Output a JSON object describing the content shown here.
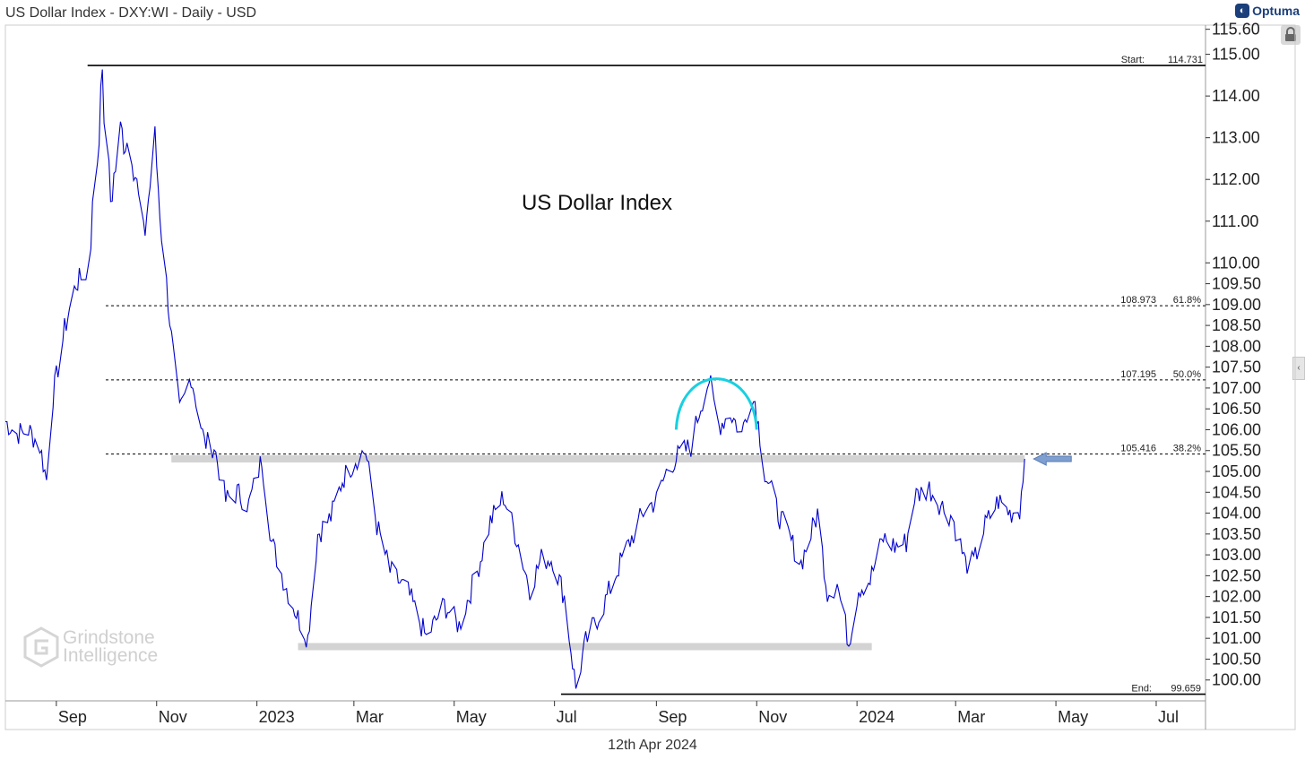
{
  "header": {
    "title": "US Dollar Index - DXY:WI - Daily - USD",
    "brand": "Optuma"
  },
  "footer": {
    "date": "12th Apr 2024"
  },
  "watermark": {
    "line1": "Grindstone",
    "line2": "Intelligence"
  },
  "colors": {
    "price": "#0000cc",
    "arc": "#18d0e0",
    "zone": "#d3d3d3",
    "arrow": "#7f9fd0",
    "axis": "#333333",
    "background": "#ffffff"
  },
  "chart_data": {
    "type": "line",
    "title": "US Dollar Index",
    "xlabel": "",
    "ylabel": "",
    "ylim": [
      99.5,
      115.7
    ],
    "xlim": [
      "2022-08-01",
      "2024-07-31"
    ],
    "grid": false,
    "x_ticks": [
      {
        "date": "2022-09-01",
        "label": "Sep"
      },
      {
        "date": "2022-11-01",
        "label": "Nov"
      },
      {
        "date": "2023-01-01",
        "label": "2023"
      },
      {
        "date": "2023-03-01",
        "label": "Mar"
      },
      {
        "date": "2023-05-01",
        "label": "May"
      },
      {
        "date": "2023-07-01",
        "label": "Jul"
      },
      {
        "date": "2023-09-01",
        "label": "Sep"
      },
      {
        "date": "2023-11-01",
        "label": "Nov"
      },
      {
        "date": "2024-01-01",
        "label": "2024"
      },
      {
        "date": "2024-03-01",
        "label": "Mar"
      },
      {
        "date": "2024-05-01",
        "label": "May"
      },
      {
        "date": "2024-07-01",
        "label": "Jul"
      }
    ],
    "y_ticks": [
      {
        "value": 100.0,
        "label": "100.00"
      },
      {
        "value": 100.5,
        "label": "100.50"
      },
      {
        "value": 101.0,
        "label": "101.00"
      },
      {
        "value": 101.5,
        "label": "101.50"
      },
      {
        "value": 102.0,
        "label": "102.00"
      },
      {
        "value": 102.5,
        "label": "102.50"
      },
      {
        "value": 103.0,
        "label": "103.00"
      },
      {
        "value": 103.5,
        "label": "103.50"
      },
      {
        "value": 104.0,
        "label": "104.00"
      },
      {
        "value": 104.5,
        "label": "104.50"
      },
      {
        "value": 105.0,
        "label": "105.00"
      },
      {
        "value": 105.5,
        "label": "105.50"
      },
      {
        "value": 106.0,
        "label": "106.00"
      },
      {
        "value": 106.5,
        "label": "106.50"
      },
      {
        "value": 107.0,
        "label": "107.00"
      },
      {
        "value": 107.5,
        "label": "107.50"
      },
      {
        "value": 108.0,
        "label": "108.00"
      },
      {
        "value": 108.5,
        "label": "108.50"
      },
      {
        "value": 109.0,
        "label": "109.00"
      },
      {
        "value": 109.5,
        "label": "109.50"
      },
      {
        "value": 110.0,
        "label": "110.00"
      },
      {
        "value": 111.0,
        "label": "111.00"
      },
      {
        "value": 112.0,
        "label": "112.00"
      },
      {
        "value": 113.0,
        "label": "113.00"
      },
      {
        "value": 114.0,
        "label": "114.00"
      },
      {
        "value": 115.0,
        "label": "115.00"
      },
      {
        "value": 115.6,
        "label": "115.60"
      }
    ],
    "series": [
      {
        "points": [
          [
            "2022-08-01",
            106.2
          ],
          [
            "2022-08-08",
            105.9
          ],
          [
            "2022-08-15",
            106.0
          ],
          [
            "2022-08-22",
            105.6
          ],
          [
            "2022-08-26",
            104.8
          ],
          [
            "2022-08-30",
            106.8
          ],
          [
            "2022-09-06",
            108.4
          ],
          [
            "2022-09-13",
            109.5
          ],
          [
            "2022-09-20",
            109.8
          ],
          [
            "2022-09-27",
            113.0
          ],
          [
            "2022-09-28",
            114.7
          ],
          [
            "2022-10-04",
            111.5
          ],
          [
            "2022-10-10",
            113.1
          ],
          [
            "2022-10-17",
            112.8
          ],
          [
            "2022-10-24",
            110.5
          ],
          [
            "2022-10-31",
            112.9
          ],
          [
            "2022-11-04",
            110.8
          ],
          [
            "2022-11-10",
            108.2
          ],
          [
            "2022-11-15",
            106.4
          ],
          [
            "2022-11-22",
            107.3
          ],
          [
            "2022-11-30",
            105.7
          ],
          [
            "2022-12-06",
            105.6
          ],
          [
            "2022-12-13",
            104.3
          ],
          [
            "2022-12-20",
            104.5
          ],
          [
            "2022-12-27",
            104.2
          ],
          [
            "2023-01-04",
            105.3
          ],
          [
            "2023-01-10",
            103.3
          ],
          [
            "2023-01-18",
            102.3
          ],
          [
            "2023-01-26",
            101.5
          ],
          [
            "2023-02-01",
            101.0
          ],
          [
            "2023-02-07",
            103.5
          ],
          [
            "2023-02-15",
            103.9
          ],
          [
            "2023-02-22",
            104.8
          ],
          [
            "2023-03-02",
            105.3
          ],
          [
            "2023-03-08",
            105.5
          ],
          [
            "2023-03-15",
            103.7
          ],
          [
            "2023-03-23",
            102.6
          ],
          [
            "2023-04-03",
            102.1
          ],
          [
            "2023-04-14",
            101.0
          ],
          [
            "2023-04-25",
            101.8
          ],
          [
            "2023-05-04",
            101.3
          ],
          [
            "2023-05-15",
            102.6
          ],
          [
            "2023-05-23",
            103.8
          ],
          [
            "2023-05-31",
            104.4
          ],
          [
            "2023-06-08",
            103.4
          ],
          [
            "2023-06-16",
            102.2
          ],
          [
            "2023-06-23",
            102.9
          ],
          [
            "2023-06-30",
            102.9
          ],
          [
            "2023-07-07",
            102.0
          ],
          [
            "2023-07-14",
            99.8
          ],
          [
            "2023-07-20",
            100.9
          ],
          [
            "2023-07-31",
            101.8
          ],
          [
            "2023-08-10",
            102.8
          ],
          [
            "2023-08-18",
            103.5
          ],
          [
            "2023-08-25",
            104.1
          ],
          [
            "2023-09-01",
            104.3
          ],
          [
            "2023-09-08",
            105.1
          ],
          [
            "2023-09-15",
            105.4
          ],
          [
            "2023-09-22",
            105.6
          ],
          [
            "2023-09-28",
            106.6
          ],
          [
            "2023-10-03",
            107.2
          ],
          [
            "2023-10-09",
            106.1
          ],
          [
            "2023-10-16",
            106.4
          ],
          [
            "2023-10-23",
            105.9
          ],
          [
            "2023-10-27",
            106.6
          ],
          [
            "2023-10-31",
            106.7
          ],
          [
            "2023-11-06",
            105.0
          ],
          [
            "2023-11-14",
            104.0
          ],
          [
            "2023-11-21",
            103.4
          ],
          [
            "2023-11-28",
            102.8
          ],
          [
            "2023-12-04",
            103.5
          ],
          [
            "2023-12-08",
            104.0
          ],
          [
            "2023-12-14",
            102.1
          ],
          [
            "2023-12-20",
            102.3
          ],
          [
            "2023-12-27",
            100.9
          ],
          [
            "2024-01-02",
            102.2
          ],
          [
            "2024-01-09",
            102.4
          ],
          [
            "2024-01-17",
            103.4
          ],
          [
            "2024-01-24",
            103.2
          ],
          [
            "2024-01-31",
            103.3
          ],
          [
            "2024-02-05",
            104.4
          ],
          [
            "2024-02-14",
            104.6
          ],
          [
            "2024-02-21",
            104.2
          ],
          [
            "2024-02-28",
            103.9
          ],
          [
            "2024-03-07",
            102.8
          ],
          [
            "2024-03-12",
            102.8
          ],
          [
            "2024-03-19",
            103.7
          ],
          [
            "2024-03-27",
            104.3
          ],
          [
            "2024-04-03",
            104.0
          ],
          [
            "2024-04-09",
            104.1
          ],
          [
            "2024-04-12",
            105.3
          ]
        ]
      }
    ],
    "start_line": {
      "label": "Start:",
      "value_label": "114.731",
      "value": 114.731
    },
    "end_line": {
      "label": "End:",
      "value_label": "99.659",
      "value": 99.659
    },
    "fib_levels": [
      {
        "value": 108.973,
        "value_label": "108.973",
        "pct": "61.8%"
      },
      {
        "value": 107.195,
        "value_label": "107.195",
        "pct": "50.0%"
      },
      {
        "value": 105.416,
        "value_label": "105.416",
        "pct": "38.2%"
      }
    ],
    "zones": [
      {
        "from": "2022-11-10",
        "to": "2024-04-12",
        "value": 105.3
      },
      {
        "from": "2023-01-26",
        "to": "2024-01-10",
        "value": 100.8
      }
    ],
    "arc": {
      "from": "2023-09-13",
      "to": "2023-11-01",
      "base": 106.0,
      "peak": 107.5
    },
    "arrow_at": {
      "date": "2024-04-12",
      "value": 105.3
    }
  }
}
